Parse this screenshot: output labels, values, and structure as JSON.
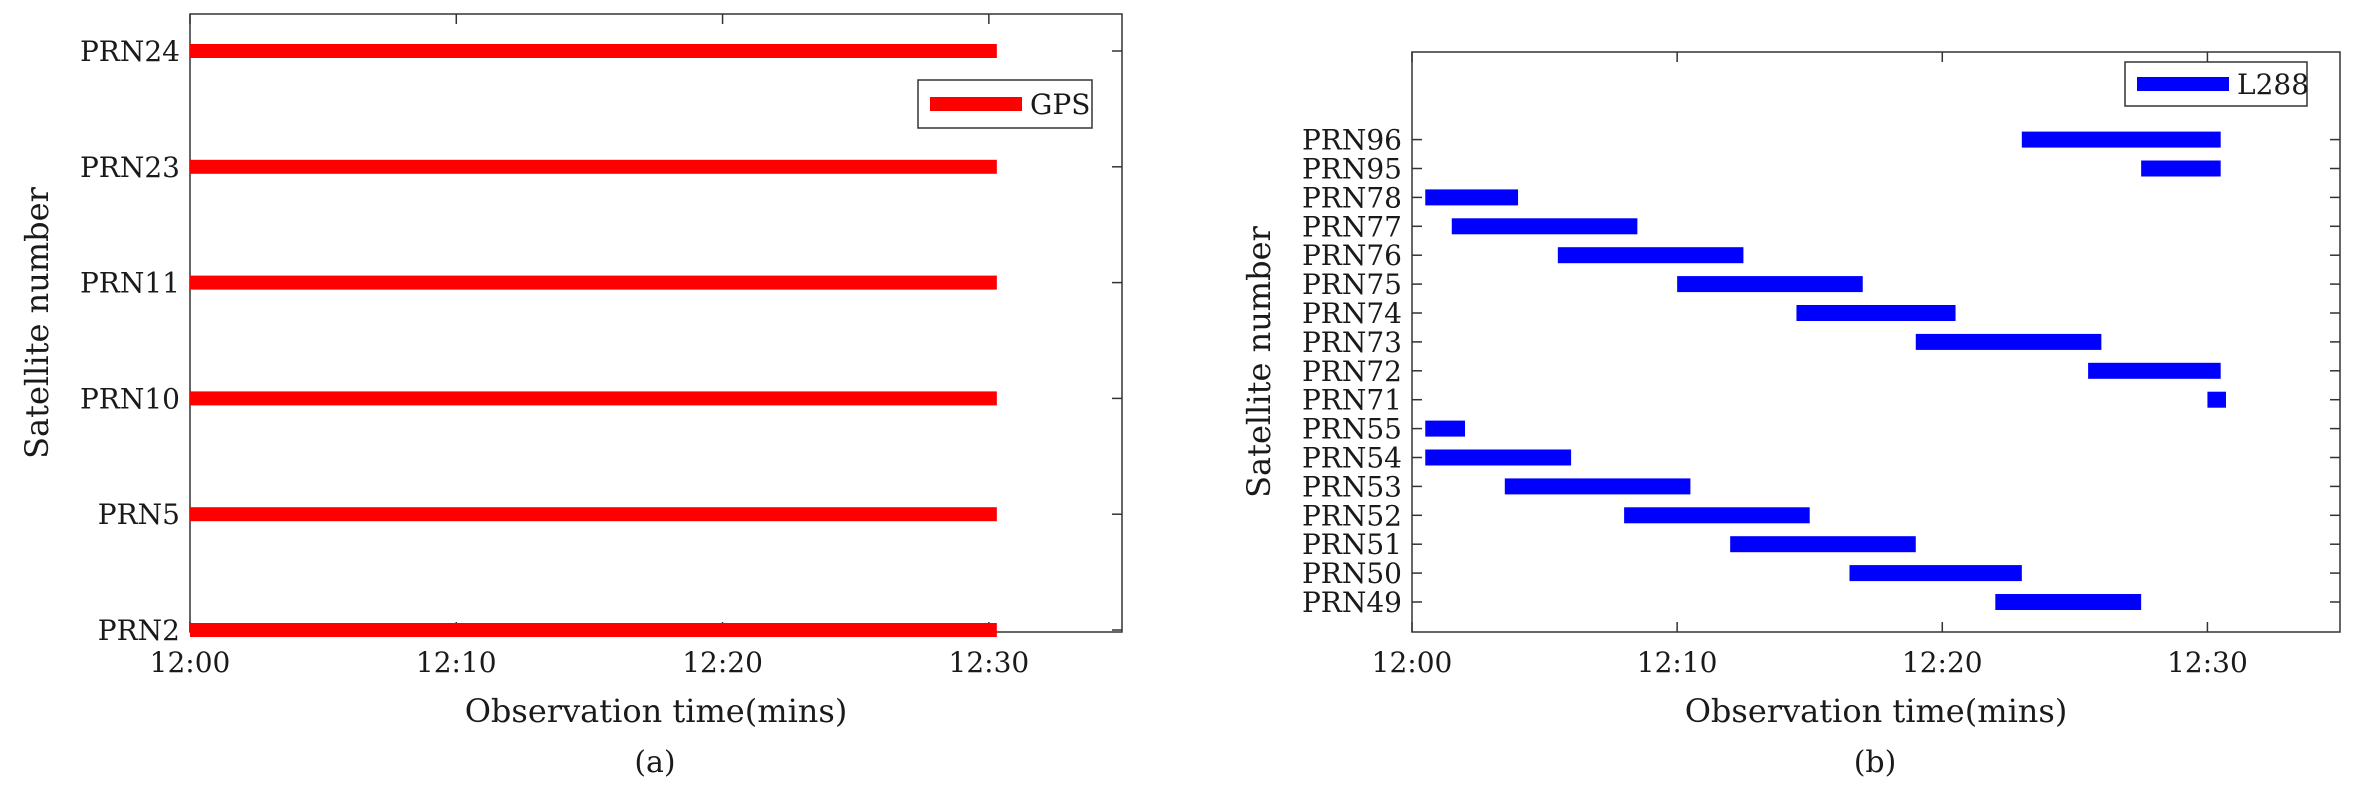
{
  "chart_data": [
    {
      "type": "bar",
      "panel_label": "(a)",
      "xlabel": "Observation time(mins)",
      "ylabel": "Satellite number",
      "x_ticks": [
        "12:00",
        "12:10",
        "12:20",
        "12:30"
      ],
      "xlim_minutes": [
        0,
        35
      ],
      "legend": {
        "label": "GPS",
        "placement": "top-right"
      },
      "color": "#ff0000",
      "satellites": [
        {
          "name": "PRN2",
          "start": 0,
          "end": 30.3
        },
        {
          "name": "PRN5",
          "start": 0,
          "end": 30.3
        },
        {
          "name": "PRN10",
          "start": 0,
          "end": 30.3
        },
        {
          "name": "PRN11",
          "start": 0,
          "end": 30.3
        },
        {
          "name": "PRN23",
          "start": 0,
          "end": 30.3
        },
        {
          "name": "PRN24",
          "start": 0,
          "end": 30.3
        }
      ]
    },
    {
      "type": "bar",
      "panel_label": "(b)",
      "xlabel": "Observation time(mins)",
      "ylabel": "Satellite number",
      "x_ticks": [
        "12:00",
        "12:10",
        "12:20",
        "12:30"
      ],
      "xlim_minutes": [
        0,
        35
      ],
      "legend": {
        "label": "L288",
        "placement": "top-right"
      },
      "color": "#0000ff",
      "satellites": [
        {
          "name": "PRN49",
          "start": 22.0,
          "end": 27.5
        },
        {
          "name": "PRN50",
          "start": 16.5,
          "end": 23.0
        },
        {
          "name": "PRN51",
          "start": 12.0,
          "end": 19.0
        },
        {
          "name": "PRN52",
          "start": 8.0,
          "end": 15.0
        },
        {
          "name": "PRN53",
          "start": 3.5,
          "end": 10.5
        },
        {
          "name": "PRN54",
          "start": 0.5,
          "end": 6.0
        },
        {
          "name": "PRN55",
          "start": 0.5,
          "end": 2.0
        },
        {
          "name": "PRN71",
          "start": 30.0,
          "end": 30.7
        },
        {
          "name": "PRN72",
          "start": 25.5,
          "end": 30.5
        },
        {
          "name": "PRN73",
          "start": 19.0,
          "end": 26.0
        },
        {
          "name": "PRN74",
          "start": 14.5,
          "end": 20.5
        },
        {
          "name": "PRN75",
          "start": 10.0,
          "end": 17.0
        },
        {
          "name": "PRN76",
          "start": 5.5,
          "end": 12.5
        },
        {
          "name": "PRN77",
          "start": 1.5,
          "end": 8.5
        },
        {
          "name": "PRN78",
          "start": 0.5,
          "end": 4.0
        },
        {
          "name": "PRN95",
          "start": 27.5,
          "end": 30.5
        },
        {
          "name": "PRN96",
          "start": 23.0,
          "end": 30.5
        }
      ]
    }
  ]
}
